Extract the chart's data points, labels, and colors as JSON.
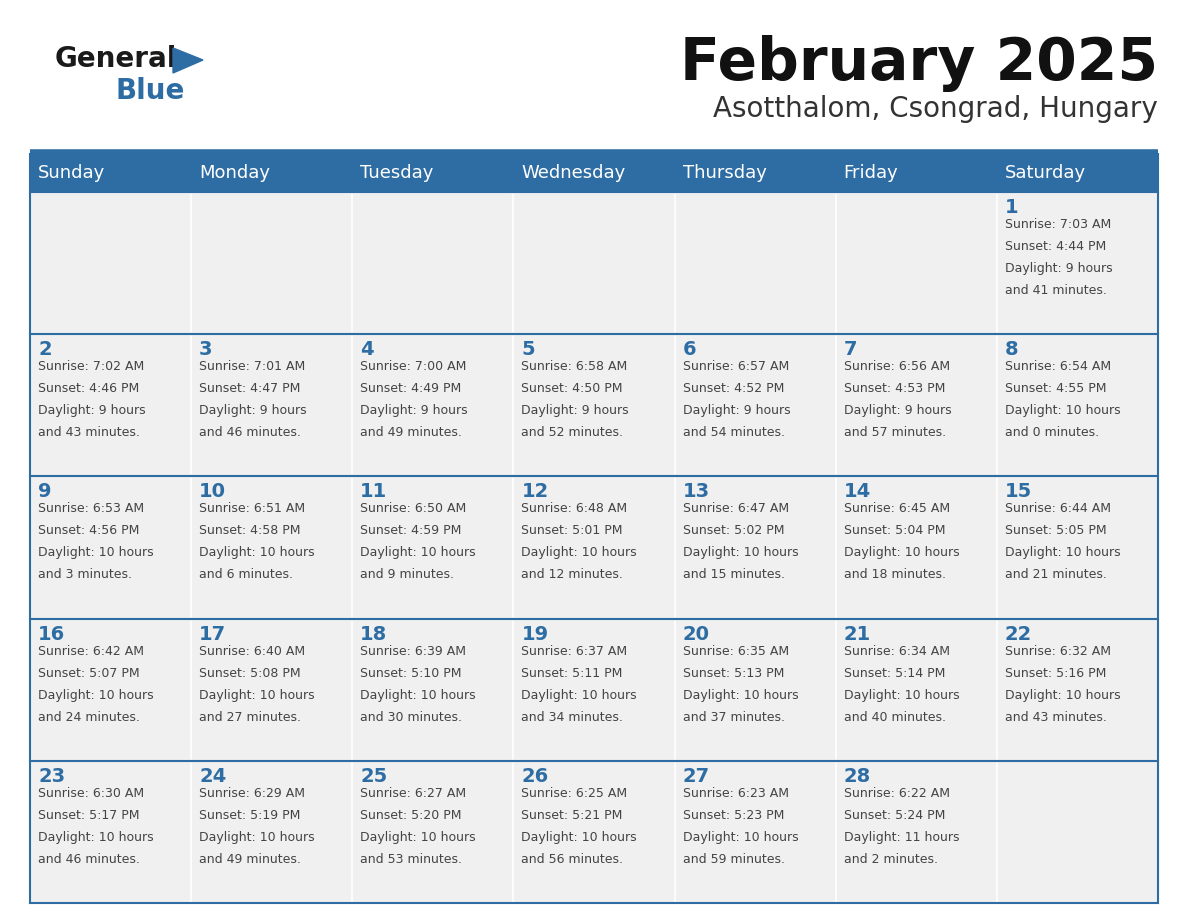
{
  "title": "February 2025",
  "subtitle": "Asotthalom, Csongrad, Hungary",
  "header_bg": "#2E6DA4",
  "header_text_color": "#FFFFFF",
  "cell_bg": "#F0F0F0",
  "cell_border_color": "#2E6DA4",
  "day_number_color": "#2E6DA4",
  "info_text_color": "#444444",
  "days_of_week": [
    "Sunday",
    "Monday",
    "Tuesday",
    "Wednesday",
    "Thursday",
    "Friday",
    "Saturday"
  ],
  "calendar": [
    [
      null,
      null,
      null,
      null,
      null,
      null,
      {
        "day": 1,
        "sunrise": "7:03 AM",
        "sunset": "4:44 PM",
        "daylight": "9 hours and 41 minutes."
      }
    ],
    [
      {
        "day": 2,
        "sunrise": "7:02 AM",
        "sunset": "4:46 PM",
        "daylight": "9 hours and 43 minutes."
      },
      {
        "day": 3,
        "sunrise": "7:01 AM",
        "sunset": "4:47 PM",
        "daylight": "9 hours and 46 minutes."
      },
      {
        "day": 4,
        "sunrise": "7:00 AM",
        "sunset": "4:49 PM",
        "daylight": "9 hours and 49 minutes."
      },
      {
        "day": 5,
        "sunrise": "6:58 AM",
        "sunset": "4:50 PM",
        "daylight": "9 hours and 52 minutes."
      },
      {
        "day": 6,
        "sunrise": "6:57 AM",
        "sunset": "4:52 PM",
        "daylight": "9 hours and 54 minutes."
      },
      {
        "day": 7,
        "sunrise": "6:56 AM",
        "sunset": "4:53 PM",
        "daylight": "9 hours and 57 minutes."
      },
      {
        "day": 8,
        "sunrise": "6:54 AM",
        "sunset": "4:55 PM",
        "daylight": "10 hours and 0 minutes."
      }
    ],
    [
      {
        "day": 9,
        "sunrise": "6:53 AM",
        "sunset": "4:56 PM",
        "daylight": "10 hours and 3 minutes."
      },
      {
        "day": 10,
        "sunrise": "6:51 AM",
        "sunset": "4:58 PM",
        "daylight": "10 hours and 6 minutes."
      },
      {
        "day": 11,
        "sunrise": "6:50 AM",
        "sunset": "4:59 PM",
        "daylight": "10 hours and 9 minutes."
      },
      {
        "day": 12,
        "sunrise": "6:48 AM",
        "sunset": "5:01 PM",
        "daylight": "10 hours and 12 minutes."
      },
      {
        "day": 13,
        "sunrise": "6:47 AM",
        "sunset": "5:02 PM",
        "daylight": "10 hours and 15 minutes."
      },
      {
        "day": 14,
        "sunrise": "6:45 AM",
        "sunset": "5:04 PM",
        "daylight": "10 hours and 18 minutes."
      },
      {
        "day": 15,
        "sunrise": "6:44 AM",
        "sunset": "5:05 PM",
        "daylight": "10 hours and 21 minutes."
      }
    ],
    [
      {
        "day": 16,
        "sunrise": "6:42 AM",
        "sunset": "5:07 PM",
        "daylight": "10 hours and 24 minutes."
      },
      {
        "day": 17,
        "sunrise": "6:40 AM",
        "sunset": "5:08 PM",
        "daylight": "10 hours and 27 minutes."
      },
      {
        "day": 18,
        "sunrise": "6:39 AM",
        "sunset": "5:10 PM",
        "daylight": "10 hours and 30 minutes."
      },
      {
        "day": 19,
        "sunrise": "6:37 AM",
        "sunset": "5:11 PM",
        "daylight": "10 hours and 34 minutes."
      },
      {
        "day": 20,
        "sunrise": "6:35 AM",
        "sunset": "5:13 PM",
        "daylight": "10 hours and 37 minutes."
      },
      {
        "day": 21,
        "sunrise": "6:34 AM",
        "sunset": "5:14 PM",
        "daylight": "10 hours and 40 minutes."
      },
      {
        "day": 22,
        "sunrise": "6:32 AM",
        "sunset": "5:16 PM",
        "daylight": "10 hours and 43 minutes."
      }
    ],
    [
      {
        "day": 23,
        "sunrise": "6:30 AM",
        "sunset": "5:17 PM",
        "daylight": "10 hours and 46 minutes."
      },
      {
        "day": 24,
        "sunrise": "6:29 AM",
        "sunset": "5:19 PM",
        "daylight": "10 hours and 49 minutes."
      },
      {
        "day": 25,
        "sunrise": "6:27 AM",
        "sunset": "5:20 PM",
        "daylight": "10 hours and 53 minutes."
      },
      {
        "day": 26,
        "sunrise": "6:25 AM",
        "sunset": "5:21 PM",
        "daylight": "10 hours and 56 minutes."
      },
      {
        "day": 27,
        "sunrise": "6:23 AM",
        "sunset": "5:23 PM",
        "daylight": "10 hours and 59 minutes."
      },
      {
        "day": 28,
        "sunrise": "6:22 AM",
        "sunset": "5:24 PM",
        "daylight": "11 hours and 2 minutes."
      },
      null
    ]
  ],
  "logo_general_color": "#1a1a1a",
  "logo_blue_color": "#2E6DA4",
  "logo_triangle_color": "#2E6DA4"
}
